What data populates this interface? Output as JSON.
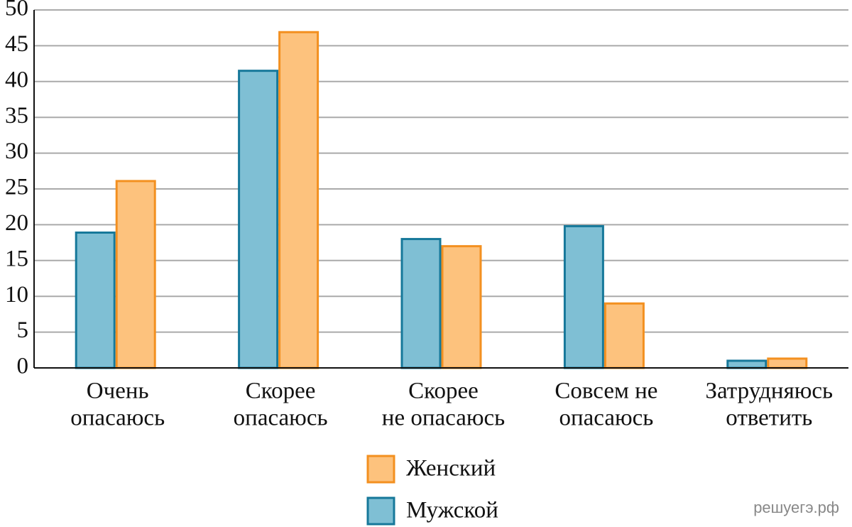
{
  "chart_data": {
    "type": "bar",
    "categories": [
      [
        "Очень",
        "опасаюсь"
      ],
      [
        "Скорее",
        "опасаюсь"
      ],
      [
        "Скорее",
        "не опасаюсь"
      ],
      [
        "Совсем не",
        "опасаюсь"
      ],
      [
        "Затрудняюсь",
        "ответить"
      ]
    ],
    "series": [
      {
        "name": "Мужской",
        "color": "#7fbfd4",
        "edgecolor": "#16789a",
        "values": [
          18.9,
          41.5,
          18,
          19.8,
          1
        ]
      },
      {
        "name": "Женский",
        "color": "#fdc27d",
        "edgecolor": "#f39020",
        "values": [
          26.1,
          46.9,
          17,
          9,
          1.3
        ]
      }
    ],
    "ylim": [
      0,
      50
    ],
    "yticks": [
      0,
      5,
      10,
      15,
      20,
      25,
      30,
      35,
      40,
      45,
      50
    ],
    "grid": true,
    "watermark": "решуегэ.рф"
  }
}
